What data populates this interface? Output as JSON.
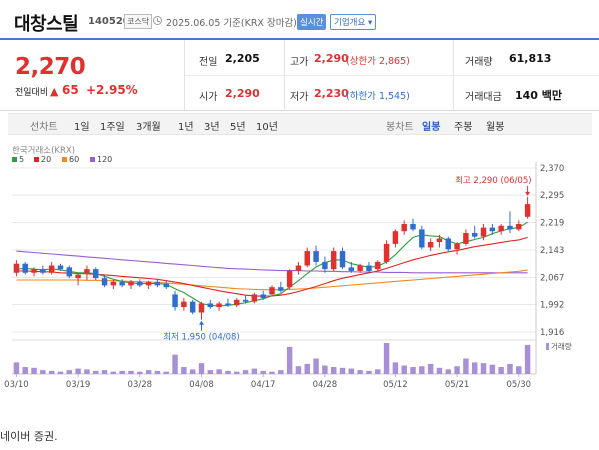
{
  "header": {
    "name": "대창스틸",
    "code": "140520",
    "market": "코스닥",
    "date_label": "2025.06.05 기준(KRX 장마감)",
    "realtime_btn": "실시간",
    "company_btn": "기업개요 ▾"
  },
  "price": {
    "current": "2,270",
    "change_label": "전일대비",
    "change_arrow": "▲",
    "change_value": "65",
    "change_pct": "+2.95%"
  },
  "info": {
    "prev_label": "전일",
    "prev_value": "2,205",
    "open_label": "시가",
    "open_value": "2,290",
    "high_label": "고가",
    "high_value": "2,290",
    "high_sub": "(상한가 2,865)",
    "low_label": "저가",
    "low_value": "2,230",
    "low_sub": "(하한가 1,545)",
    "volume_label": "거래량",
    "volume_value": "61,813",
    "amount_label": "거래대금",
    "amount_value": "140 백만"
  },
  "toolbar": {
    "line_chart": "선차트",
    "periods": [
      "1일",
      "1주일",
      "3개월",
      "1년",
      "3년",
      "5년",
      "10년"
    ],
    "candle_chart": "봉차트",
    "daily": "일봉",
    "weekly": "주봉",
    "monthly": "월봉"
  },
  "colors": {
    "up": "#e03131",
    "down": "#2f6dd3",
    "ma5": "#2e9e3e",
    "ma20": "#e02424",
    "ma60": "#ee8a1e",
    "ma120": "#9a5fd1",
    "accent": "#4a76c4"
  },
  "chart_data": {
    "type": "candlestick",
    "source_label": "한국거래소(KRX)",
    "legend": [
      {
        "name": "5",
        "color": "#2e9e3e"
      },
      {
        "name": "20",
        "color": "#e02424"
      },
      {
        "name": "60",
        "color": "#ee8a1e"
      },
      {
        "name": "120",
        "color": "#9a5fd1"
      }
    ],
    "y_ticks": [
      2370,
      2295,
      2219,
      2143,
      2067,
      1992,
      1916
    ],
    "y_tick_labels": [
      "2,370",
      "2,295",
      "2,219",
      "2,143",
      "2,067",
      "1,992",
      "1,916"
    ],
    "ylim": [
      1916,
      2370
    ],
    "x_tick_labels": [
      "03/10",
      "03/19",
      "03/28",
      "04/08",
      "04/17",
      "04/28",
      "05/12",
      "05/21",
      "05/30"
    ],
    "x_tick_index": [
      0,
      7,
      14,
      21,
      28,
      35,
      43,
      50,
      57
    ],
    "candles": [
      {
        "o": 2080,
        "h": 2115,
        "l": 2070,
        "c": 2105
      },
      {
        "o": 2105,
        "h": 2110,
        "l": 2075,
        "c": 2080
      },
      {
        "o": 2080,
        "h": 2095,
        "l": 2070,
        "c": 2090
      },
      {
        "o": 2090,
        "h": 2100,
        "l": 2075,
        "c": 2080
      },
      {
        "o": 2080,
        "h": 2110,
        "l": 2075,
        "c": 2100
      },
      {
        "o": 2100,
        "h": 2105,
        "l": 2085,
        "c": 2090
      },
      {
        "o": 2095,
        "h": 2100,
        "l": 2065,
        "c": 2070
      },
      {
        "o": 2065,
        "h": 2080,
        "l": 2045,
        "c": 2075
      },
      {
        "o": 2080,
        "h": 2100,
        "l": 2060,
        "c": 2090
      },
      {
        "o": 2090,
        "h": 2095,
        "l": 2060,
        "c": 2065
      },
      {
        "o": 2065,
        "h": 2075,
        "l": 2040,
        "c": 2045
      },
      {
        "o": 2045,
        "h": 2060,
        "l": 2035,
        "c": 2055
      },
      {
        "o": 2055,
        "h": 2062,
        "l": 2040,
        "c": 2045
      },
      {
        "o": 2045,
        "h": 2060,
        "l": 2035,
        "c": 2055
      },
      {
        "o": 2055,
        "h": 2062,
        "l": 2040,
        "c": 2045
      },
      {
        "o": 2045,
        "h": 2058,
        "l": 2035,
        "c": 2055
      },
      {
        "o": 2055,
        "h": 2062,
        "l": 2040,
        "c": 2045
      },
      {
        "o": 2050,
        "h": 2060,
        "l": 2035,
        "c": 2040
      },
      {
        "o": 2020,
        "h": 2030,
        "l": 1975,
        "c": 1985
      },
      {
        "o": 1985,
        "h": 2010,
        "l": 1975,
        "c": 2000
      },
      {
        "o": 2000,
        "h": 2005,
        "l": 1965,
        "c": 1970
      },
      {
        "o": 1970,
        "h": 2000,
        "l": 1950,
        "c": 1995
      },
      {
        "o": 1995,
        "h": 2005,
        "l": 1980,
        "c": 1985
      },
      {
        "o": 1985,
        "h": 2000,
        "l": 1975,
        "c": 1995
      },
      {
        "o": 1995,
        "h": 2008,
        "l": 1985,
        "c": 1990
      },
      {
        "o": 1990,
        "h": 2010,
        "l": 1985,
        "c": 2005
      },
      {
        "o": 2005,
        "h": 2018,
        "l": 1995,
        "c": 2000
      },
      {
        "o": 2000,
        "h": 2025,
        "l": 1995,
        "c": 2020
      },
      {
        "o": 2020,
        "h": 2030,
        "l": 2005,
        "c": 2010
      },
      {
        "o": 2020,
        "h": 2045,
        "l": 2015,
        "c": 2040
      },
      {
        "o": 2040,
        "h": 2055,
        "l": 2025,
        "c": 2030
      },
      {
        "o": 2040,
        "h": 2090,
        "l": 2035,
        "c": 2085
      },
      {
        "o": 2085,
        "h": 2110,
        "l": 2075,
        "c": 2100
      },
      {
        "o": 2100,
        "h": 2150,
        "l": 2095,
        "c": 2140
      },
      {
        "o": 2140,
        "h": 2155,
        "l": 2100,
        "c": 2110
      },
      {
        "o": 2110,
        "h": 2125,
        "l": 2080,
        "c": 2090
      },
      {
        "o": 2090,
        "h": 2150,
        "l": 2085,
        "c": 2140
      },
      {
        "o": 2140,
        "h": 2150,
        "l": 2090,
        "c": 2095
      },
      {
        "o": 2095,
        "h": 2110,
        "l": 2080,
        "c": 2085
      },
      {
        "o": 2085,
        "h": 2105,
        "l": 2080,
        "c": 2100
      },
      {
        "o": 2100,
        "h": 2110,
        "l": 2080,
        "c": 2085
      },
      {
        "o": 2090,
        "h": 2115,
        "l": 2085,
        "c": 2110
      },
      {
        "o": 2110,
        "h": 2170,
        "l": 2105,
        "c": 2160
      },
      {
        "o": 2160,
        "h": 2200,
        "l": 2150,
        "c": 2195
      },
      {
        "o": 2195,
        "h": 2225,
        "l": 2185,
        "c": 2215
      },
      {
        "o": 2215,
        "h": 2230,
        "l": 2195,
        "c": 2200
      },
      {
        "o": 2200,
        "h": 2210,
        "l": 2145,
        "c": 2150
      },
      {
        "o": 2150,
        "h": 2175,
        "l": 2140,
        "c": 2165
      },
      {
        "o": 2165,
        "h": 2185,
        "l": 2150,
        "c": 2175
      },
      {
        "o": 2175,
        "h": 2180,
        "l": 2140,
        "c": 2145
      },
      {
        "o": 2145,
        "h": 2165,
        "l": 2130,
        "c": 2160
      },
      {
        "o": 2160,
        "h": 2200,
        "l": 2155,
        "c": 2190
      },
      {
        "o": 2190,
        "h": 2210,
        "l": 2175,
        "c": 2180
      },
      {
        "o": 2180,
        "h": 2215,
        "l": 2170,
        "c": 2205
      },
      {
        "o": 2205,
        "h": 2215,
        "l": 2185,
        "c": 2195
      },
      {
        "o": 2195,
        "h": 2215,
        "l": 2185,
        "c": 2210
      },
      {
        "o": 2210,
        "h": 2250,
        "l": 2190,
        "c": 2200
      },
      {
        "o": 2200,
        "h": 2225,
        "l": 2195,
        "c": 2215
      },
      {
        "o": 2235,
        "h": 2290,
        "l": 2230,
        "c": 2270
      }
    ],
    "ma5": [
      2090,
      2092,
      2090,
      2088,
      2091,
      2088,
      2084,
      2080,
      2080,
      2078,
      2070,
      2062,
      2056,
      2052,
      2050,
      2050,
      2050,
      2048,
      2036,
      2025,
      2010,
      1995,
      1990,
      1988,
      1990,
      1993,
      1997,
      2003,
      2008,
      2016,
      2022,
      2040,
      2058,
      2078,
      2096,
      2108,
      2115,
      2116,
      2105,
      2100,
      2095,
      2098,
      2110,
      2130,
      2155,
      2178,
      2185,
      2182,
      2180,
      2168,
      2160,
      2166,
      2172,
      2178,
      2188,
      2196,
      2202,
      2205,
      2220
    ],
    "ma20": [
      2085,
      2085,
      2084,
      2083,
      2082,
      2080,
      2079,
      2078,
      2077,
      2076,
      2074,
      2072,
      2070,
      2068,
      2066,
      2064,
      2062,
      2058,
      2054,
      2050,
      2045,
      2040,
      2035,
      2030,
      2026,
      2022,
      2018,
      2016,
      2015,
      2016,
      2018,
      2022,
      2028,
      2035,
      2042,
      2050,
      2058,
      2065,
      2070,
      2075,
      2080,
      2085,
      2092,
      2100,
      2108,
      2116,
      2122,
      2128,
      2133,
      2138,
      2142,
      2147,
      2152,
      2156,
      2160,
      2164,
      2168,
      2171,
      2178
    ],
    "ma60": [
      2060,
      2060,
      2060,
      2060,
      2060,
      2060,
      2060,
      2060,
      2059,
      2059,
      2058,
      2058,
      2057,
      2056,
      2055,
      2054,
      2053,
      2052,
      2050,
      2048,
      2046,
      2044,
      2042,
      2040,
      2038,
      2036,
      2035,
      2034,
      2033,
      2033,
      2033,
      2034,
      2035,
      2036,
      2038,
      2040,
      2042,
      2044,
      2046,
      2048,
      2050,
      2052,
      2054,
      2056,
      2058,
      2060,
      2062,
      2064,
      2066,
      2068,
      2070,
      2072,
      2074,
      2076,
      2078,
      2080,
      2082,
      2084,
      2088
    ],
    "ma120": [
      2140,
      2138,
      2136,
      2134,
      2132,
      2130,
      2128,
      2126,
      2124,
      2122,
      2120,
      2118,
      2116,
      2114,
      2112,
      2110,
      2108,
      2106,
      2104,
      2102,
      2100,
      2098,
      2096,
      2094,
      2092,
      2091,
      2090,
      2089,
      2088,
      2087,
      2086,
      2086,
      2086,
      2085,
      2085,
      2084,
      2084,
      2083,
      2083,
      2082,
      2082,
      2082,
      2081,
      2081,
      2081,
      2080,
      2080,
      2080,
      2080,
      2080,
      2080,
      2080,
      2080,
      2080,
      2080,
      2080,
      2080,
      2080,
      2080
    ],
    "volume": [
      30,
      18,
      16,
      10,
      8,
      6,
      10,
      14,
      12,
      8,
      10,
      6,
      8,
      8,
      6,
      10,
      8,
      6,
      50,
      18,
      12,
      28,
      10,
      12,
      8,
      6,
      10,
      14,
      8,
      6,
      10,
      70,
      20,
      26,
      40,
      22,
      18,
      16,
      14,
      10,
      8,
      12,
      80,
      30,
      22,
      18,
      20,
      26,
      16,
      12,
      20,
      40,
      30,
      28,
      24,
      18,
      26,
      20,
      75
    ],
    "annotations": {
      "high_label": "최고 2,290 (06/05)",
      "low_label": "최저 1,950 (04/08)"
    },
    "volume_label": "거래량"
  },
  "footer": {
    "text": "네이버 증권."
  }
}
